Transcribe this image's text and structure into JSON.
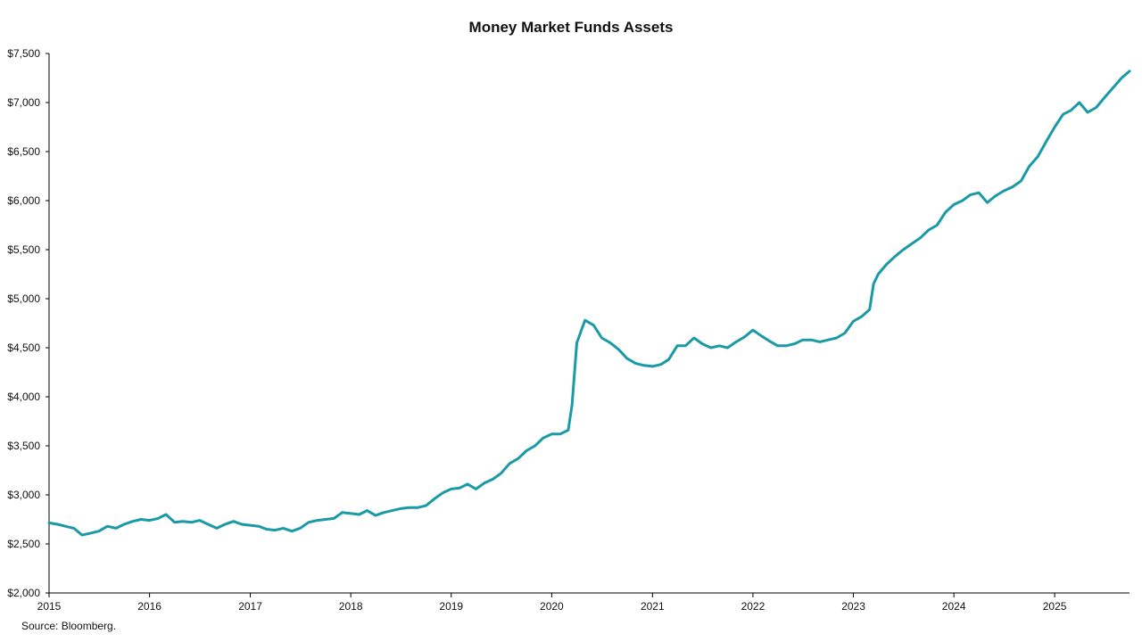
{
  "chart_data": {
    "type": "line",
    "title": "Money Market Funds Assets",
    "xlabel": "",
    "ylabel": "",
    "x_tick_labels": [
      "2015",
      "2016",
      "2017",
      "2018",
      "2019",
      "2020",
      "2021",
      "2022",
      "2023",
      "2024",
      "2025"
    ],
    "y_tick_labels": [
      "$2,000",
      "$2,500",
      "$3,000",
      "$3,500",
      "$4,000",
      "$4,500",
      "$5,000",
      "$5,500",
      "$6,000",
      "$6,500",
      "$7,000",
      "$7,500"
    ],
    "xlim": [
      "2015-01-01",
      "2025-09-30"
    ],
    "ylim": [
      2000,
      7500
    ],
    "grid": false,
    "line_color": "#1a9aa6",
    "series": [
      {
        "x": [
          "2015-01-01",
          "2015-02-01",
          "2015-03-01",
          "2015-04-01",
          "2015-05-01",
          "2015-06-01",
          "2015-07-01",
          "2015-08-01",
          "2015-09-01",
          "2015-10-01",
          "2015-11-01",
          "2015-12-01",
          "2016-01-01",
          "2016-02-01",
          "2016-03-01",
          "2016-04-01",
          "2016-05-01",
          "2016-06-01",
          "2016-07-01",
          "2016-08-01",
          "2016-09-01",
          "2016-10-01",
          "2016-11-01",
          "2016-12-01",
          "2017-01-01",
          "2017-02-01",
          "2017-03-01",
          "2017-04-01",
          "2017-05-01",
          "2017-06-01",
          "2017-07-01",
          "2017-08-01",
          "2017-09-01",
          "2017-10-01",
          "2017-11-01",
          "2017-12-01",
          "2018-01-01",
          "2018-02-01",
          "2018-03-01",
          "2018-04-01",
          "2018-05-01",
          "2018-06-01",
          "2018-07-01",
          "2018-08-01",
          "2018-09-01",
          "2018-10-01",
          "2018-11-01",
          "2018-12-01",
          "2019-01-01",
          "2019-02-01",
          "2019-03-01",
          "2019-04-01",
          "2019-05-01",
          "2019-06-01",
          "2019-07-01",
          "2019-08-01",
          "2019-09-01",
          "2019-10-01",
          "2019-11-01",
          "2019-12-01",
          "2020-01-01",
          "2020-02-01",
          "2020-03-01",
          "2020-03-15",
          "2020-04-01",
          "2020-05-01",
          "2020-06-01",
          "2020-07-01",
          "2020-08-01",
          "2020-09-01",
          "2020-10-01",
          "2020-11-01",
          "2020-12-01",
          "2021-01-01",
          "2021-02-01",
          "2021-03-01",
          "2021-04-01",
          "2021-05-01",
          "2021-06-01",
          "2021-07-01",
          "2021-08-01",
          "2021-09-01",
          "2021-10-01",
          "2021-11-01",
          "2021-12-01",
          "2022-01-01",
          "2022-02-01",
          "2022-03-01",
          "2022-04-01",
          "2022-05-01",
          "2022-06-01",
          "2022-07-01",
          "2022-08-01",
          "2022-09-01",
          "2022-10-01",
          "2022-11-01",
          "2022-12-01",
          "2023-01-01",
          "2023-02-01",
          "2023-03-01",
          "2023-03-15",
          "2023-04-01",
          "2023-05-01",
          "2023-06-01",
          "2023-07-01",
          "2023-08-01",
          "2023-09-01",
          "2023-10-01",
          "2023-11-01",
          "2023-12-01",
          "2024-01-01",
          "2024-02-01",
          "2024-03-01",
          "2024-04-01",
          "2024-05-01",
          "2024-06-01",
          "2024-07-01",
          "2024-08-01",
          "2024-09-01",
          "2024-10-01",
          "2024-11-01",
          "2024-12-01",
          "2025-01-01",
          "2025-02-01",
          "2025-03-01",
          "2025-04-01",
          "2025-05-01",
          "2025-06-01",
          "2025-07-01",
          "2025-08-01",
          "2025-09-01",
          "2025-09-30"
        ],
        "y": [
          2715,
          2700,
          2680,
          2660,
          2590,
          2610,
          2630,
          2680,
          2660,
          2700,
          2730,
          2750,
          2740,
          2760,
          2800,
          2720,
          2730,
          2720,
          2740,
          2700,
          2660,
          2700,
          2730,
          2700,
          2690,
          2680,
          2650,
          2640,
          2660,
          2630,
          2660,
          2720,
          2740,
          2750,
          2760,
          2820,
          2810,
          2800,
          2840,
          2790,
          2820,
          2840,
          2860,
          2870,
          2870,
          2890,
          2960,
          3020,
          3060,
          3070,
          3110,
          3060,
          3120,
          3160,
          3220,
          3320,
          3370,
          3450,
          3500,
          3580,
          3620,
          3620,
          3660,
          3920,
          4550,
          4780,
          4730,
          4600,
          4550,
          4480,
          4390,
          4340,
          4320,
          4310,
          4330,
          4380,
          4520,
          4520,
          4600,
          4540,
          4500,
          4520,
          4500,
          4560,
          4610,
          4680,
          4620,
          4570,
          4520,
          4520,
          4540,
          4580,
          4580,
          4560,
          4580,
          4600,
          4650,
          4770,
          4820,
          4890,
          5150,
          5250,
          5350,
          5430,
          5500,
          5560,
          5620,
          5700,
          5750,
          5880,
          5960,
          6000,
          6060,
          6080,
          5980,
          6050,
          6100,
          6140,
          6200,
          6350,
          6450,
          6600,
          6750,
          6880,
          6920,
          7000,
          6900,
          6950,
          7050,
          7150,
          7250,
          7320
        ]
      }
    ],
    "source_note": "Source: Bloomberg."
  }
}
